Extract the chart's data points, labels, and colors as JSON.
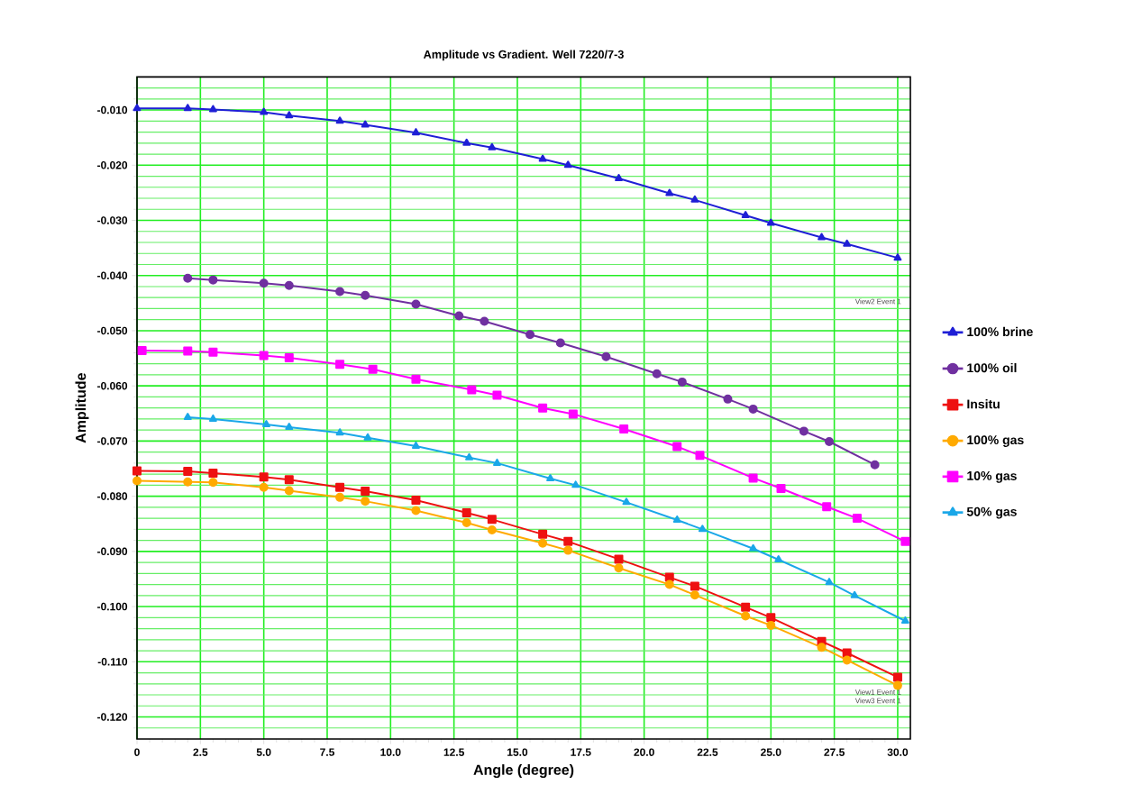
{
  "chart_data": {
    "type": "line",
    "title": "Amplitude vs Gradient. Well 7220/7-3",
    "xlabel": "Angle (degree)",
    "ylabel": "Amplitude",
    "xlim": [
      0,
      30.5
    ],
    "ylim": [
      -0.124,
      -0.004
    ],
    "xticks": [
      0,
      {
        "value": 2.5,
        "label": "2.5"
      },
      {
        "value": 5,
        "label": "5.0"
      },
      {
        "value": 7.5,
        "label": "7.5"
      },
      {
        "value": 10,
        "label": "10.0"
      },
      {
        "value": 12.5,
        "label": "12.5"
      },
      {
        "value": 15,
        "label": "15.0"
      },
      {
        "value": 17.5,
        "label": "17.5"
      },
      {
        "value": 20,
        "label": "20.0"
      },
      {
        "value": 22.5,
        "label": "22.5"
      },
      {
        "value": 25,
        "label": "25.0"
      },
      {
        "value": 27.5,
        "label": "27.5"
      },
      {
        "value": 30,
        "label": "30.0"
      }
    ],
    "yticks": [
      {
        "value": -0.006,
        "label": null
      },
      {
        "value": -0.008,
        "label": null
      },
      {
        "value": -0.012,
        "label": null
      },
      {
        "value": -0.014,
        "label": null
      },
      {
        "value": -0.016,
        "label": null
      },
      {
        "value": -0.018,
        "label": null
      },
      {
        "value": -0.022,
        "label": null
      },
      {
        "value": -0.024,
        "label": null
      },
      {
        "value": -0.026,
        "label": null
      },
      {
        "value": -0.028,
        "label": null
      },
      {
        "value": -0.032,
        "label": null
      },
      {
        "value": -0.034,
        "label": null
      },
      {
        "value": -0.036,
        "label": null
      },
      {
        "value": -0.038,
        "label": null
      },
      {
        "value": -0.042,
        "label": null
      },
      {
        "value": -0.044,
        "label": null
      },
      {
        "value": -0.046,
        "label": null
      },
      {
        "value": -0.048,
        "label": null
      },
      {
        "value": -0.052,
        "label": null
      },
      {
        "value": -0.054,
        "label": null
      },
      {
        "value": -0.056,
        "label": null
      },
      {
        "value": -0.058,
        "label": null
      },
      {
        "value": -0.062,
        "label": null
      },
      {
        "value": -0.064,
        "label": null
      },
      {
        "value": -0.066,
        "label": null
      },
      {
        "value": -0.068,
        "label": null
      },
      {
        "value": -0.072,
        "label": null
      },
      {
        "value": -0.074,
        "label": null
      },
      {
        "value": -0.076,
        "label": null
      },
      {
        "value": -0.078,
        "label": null
      },
      {
        "value": -0.082,
        "label": null
      },
      {
        "value": -0.084,
        "label": null
      },
      {
        "value": -0.086,
        "label": null
      },
      {
        "value": -0.088,
        "label": null
      },
      {
        "value": -0.092,
        "label": null
      },
      {
        "value": -0.094,
        "label": null
      },
      {
        "value": -0.096,
        "label": null
      },
      {
        "value": -0.098,
        "label": null
      },
      {
        "value": -0.102,
        "label": null
      },
      {
        "value": -0.104,
        "label": null
      },
      {
        "value": -0.106,
        "label": null
      },
      {
        "value": -0.108,
        "label": null
      },
      {
        "value": -0.112,
        "label": null
      },
      {
        "value": -0.114,
        "label": null
      },
      {
        "value": -0.116,
        "label": null
      },
      {
        "value": -0.118,
        "label": null
      },
      {
        "value": -0.122,
        "label": null
      },
      {
        "value": -0.01,
        "label": "-0.010"
      },
      {
        "value": -0.02,
        "label": "-0.020"
      },
      {
        "value": -0.03,
        "label": "-0.030"
      },
      {
        "value": -0.04,
        "label": "-0.040"
      },
      {
        "value": -0.05,
        "label": "-0.050"
      },
      {
        "value": -0.06,
        "label": "-0.060"
      },
      {
        "value": -0.07,
        "label": "-0.070"
      },
      {
        "value": -0.08,
        "label": "-0.080"
      },
      {
        "value": -0.09,
        "label": "-0.090"
      },
      {
        "value": -0.1,
        "label": "-0.100"
      },
      {
        "value": -0.11,
        "label": "-0.110"
      },
      {
        "value": -0.12,
        "label": "-0.120"
      }
    ],
    "grid": true,
    "legend": "right",
    "line_style": "solid",
    "series": [
      {
        "name": "100% brine",
        "color": "#1f1fd6",
        "marker": "triangle",
        "x": [
          0,
          2,
          3,
          5,
          6,
          8,
          9,
          11,
          13,
          14,
          16,
          17,
          19,
          21,
          22,
          24,
          25,
          27,
          28,
          30
        ],
        "values": [
          -0.0097,
          -0.0097,
          -0.0099,
          -0.0104,
          -0.011,
          -0.012,
          -0.0127,
          -0.0141,
          -0.016,
          -0.0168,
          -0.0189,
          -0.02,
          -0.0224,
          -0.0251,
          -0.0263,
          -0.0291,
          -0.0305,
          -0.0331,
          -0.0343,
          -0.0368
        ]
      },
      {
        "name": "100% oil",
        "color": "#7030a0",
        "marker": "circle",
        "x": [
          2,
          3,
          5,
          6,
          8,
          9,
          11,
          12.7,
          13.7,
          15.5,
          16.7,
          18.5,
          20.5,
          21.5,
          23.3,
          24.3,
          26.3,
          27.3,
          29.1
        ],
        "values": [
          -0.0405,
          -0.0408,
          -0.0414,
          -0.0418,
          -0.0429,
          -0.0436,
          -0.0452,
          -0.0473,
          -0.0483,
          -0.0507,
          -0.0522,
          -0.0547,
          -0.0578,
          -0.0593,
          -0.0624,
          -0.0642,
          -0.0682,
          -0.0701,
          -0.0743
        ]
      },
      {
        "name": "Insitu",
        "color": "#ee1111",
        "marker": "square",
        "x": [
          0,
          2,
          3,
          5,
          6,
          8,
          9,
          11,
          13,
          14,
          16,
          17,
          19,
          21,
          22,
          24,
          25,
          27,
          28,
          30
        ],
        "values": [
          -0.0754,
          -0.0755,
          -0.0758,
          -0.0765,
          -0.077,
          -0.0784,
          -0.0791,
          -0.0807,
          -0.083,
          -0.0842,
          -0.0869,
          -0.0882,
          -0.0914,
          -0.0947,
          -0.0963,
          -0.1001,
          -0.102,
          -0.1063,
          -0.1084,
          -0.1128
        ]
      },
      {
        "name": "100% gas",
        "color": "#ffaa00",
        "marker": "circle",
        "x": [
          0,
          2,
          3,
          5,
          6,
          8,
          9,
          11,
          13,
          14,
          16,
          17,
          19,
          21,
          22,
          24,
          25,
          27,
          28,
          30
        ],
        "values": [
          -0.0772,
          -0.0774,
          -0.0775,
          -0.0784,
          -0.079,
          -0.0802,
          -0.0809,
          -0.0826,
          -0.0848,
          -0.0861,
          -0.0885,
          -0.0898,
          -0.093,
          -0.096,
          -0.0979,
          -0.1017,
          -0.1034,
          -0.1074,
          -0.1097,
          -0.1143
        ]
      },
      {
        "name": "10% gas",
        "color": "#ff00ff",
        "marker": "square",
        "x": [
          0.2,
          2,
          3,
          5,
          6,
          8,
          9.3,
          11,
          13.2,
          14.2,
          16,
          17.2,
          19.2,
          21.3,
          22.2,
          24.3,
          25.4,
          27.2,
          28.4,
          30.3
        ],
        "values": [
          -0.0536,
          -0.0537,
          -0.0539,
          -0.0545,
          -0.0549,
          -0.0561,
          -0.057,
          -0.0588,
          -0.0607,
          -0.0617,
          -0.064,
          -0.0651,
          -0.0678,
          -0.071,
          -0.0726,
          -0.0767,
          -0.0786,
          -0.0819,
          -0.084,
          -0.0882
        ]
      },
      {
        "name": "50% gas",
        "color": "#1aa7e8",
        "marker": "triangle",
        "x": [
          2,
          3,
          5.1,
          6,
          8,
          9.1,
          11,
          13.1,
          14.2,
          16.3,
          17.3,
          19.3,
          21.3,
          22.3,
          24.3,
          25.3,
          27.3,
          28.3,
          30.3
        ],
        "values": [
          -0.0657,
          -0.066,
          -0.067,
          -0.0675,
          -0.0685,
          -0.0694,
          -0.0709,
          -0.073,
          -0.074,
          -0.0768,
          -0.078,
          -0.0811,
          -0.0843,
          -0.086,
          -0.0895,
          -0.0915,
          -0.0956,
          -0.098,
          -0.1026
        ]
      }
    ],
    "annotations": [
      "View2 Event 1",
      "View1 Event 1",
      "View3 Event 1"
    ]
  }
}
